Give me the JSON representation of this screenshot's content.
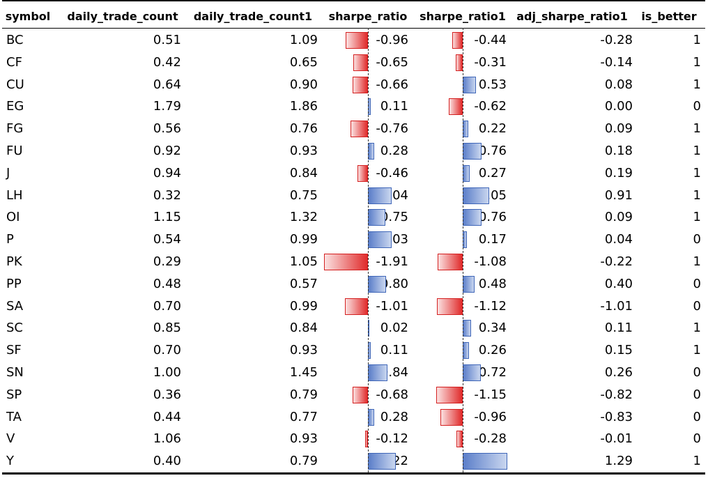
{
  "chart_data": {
    "type": "table",
    "columns": [
      "symbol",
      "daily_trade_count",
      "daily_trade_count1",
      "sharpe_ratio",
      "sharpe_ratio1",
      "adj_sharpe_ratio1",
      "is_better"
    ],
    "rows": [
      [
        "BC",
        "0.51",
        "1.09",
        "-0.96",
        "-0.44",
        "-0.28",
        "1"
      ],
      [
        "CF",
        "0.42",
        "0.65",
        "-0.65",
        "-0.31",
        "-0.14",
        "1"
      ],
      [
        "CU",
        "0.64",
        "0.90",
        "-0.66",
        "0.53",
        "0.08",
        "1"
      ],
      [
        "EG",
        "1.79",
        "1.86",
        "0.11",
        "-0.62",
        "0.00",
        "0"
      ],
      [
        "FG",
        "0.56",
        "0.76",
        "-0.76",
        "0.22",
        "0.09",
        "1"
      ],
      [
        "FU",
        "0.92",
        "0.93",
        "0.28",
        "0.76",
        "0.18",
        "1"
      ],
      [
        "J",
        "0.94",
        "0.84",
        "-0.46",
        "0.27",
        "0.19",
        "1"
      ],
      [
        "LH",
        "0.32",
        "0.75",
        "1.04",
        "1.05",
        "0.91",
        "1"
      ],
      [
        "OI",
        "1.15",
        "1.32",
        "0.75",
        "0.76",
        "0.09",
        "1"
      ],
      [
        "P",
        "0.54",
        "0.99",
        "1.03",
        "0.17",
        "0.04",
        "0"
      ],
      [
        "PK",
        "0.29",
        "1.05",
        "-1.91",
        "-1.08",
        "-0.22",
        "1"
      ],
      [
        "PP",
        "0.48",
        "0.57",
        "0.80",
        "0.48",
        "0.40",
        "0"
      ],
      [
        "SA",
        "0.70",
        "0.99",
        "-1.01",
        "-1.12",
        "-1.01",
        "0"
      ],
      [
        "SC",
        "0.85",
        "0.84",
        "0.02",
        "0.34",
        "0.11",
        "1"
      ],
      [
        "SF",
        "0.70",
        "0.93",
        "0.11",
        "0.26",
        "0.15",
        "1"
      ],
      [
        "SN",
        "1.00",
        "1.45",
        "0.84",
        "0.72",
        "0.26",
        "0"
      ],
      [
        "SP",
        "0.36",
        "0.79",
        "-0.68",
        "-1.15",
        "-0.82",
        "0"
      ],
      [
        "TA",
        "0.44",
        "0.77",
        "0.28",
        "-0.96",
        "-0.83",
        "0"
      ],
      [
        "V",
        "1.06",
        "0.93",
        "-0.12",
        "-0.28",
        "-0.01",
        "0"
      ],
      [
        "Y",
        "0.40",
        "0.79",
        "1.22",
        "1.77",
        "1.29",
        "1"
      ]
    ],
    "data_bar_columns": [
      "sharpe_ratio",
      "sharpe_ratio1"
    ],
    "colors": {
      "positive_bar": "#5b7ec9",
      "negative_bar": "#e02b2b",
      "axis": "#333333"
    }
  }
}
